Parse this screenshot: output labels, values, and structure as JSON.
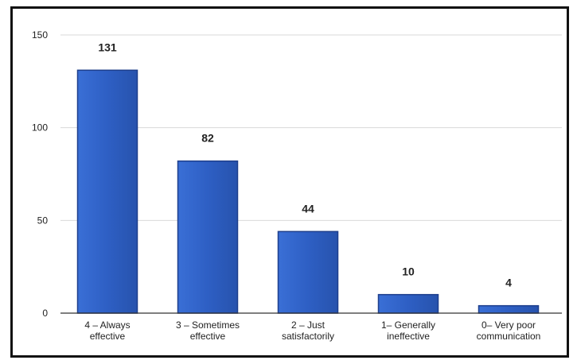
{
  "chart_data": {
    "type": "bar",
    "categories": [
      [
        "4 – Always",
        "effective"
      ],
      [
        "3 – Sometimes",
        "effective"
      ],
      [
        "2 – Just",
        "satisfactorily"
      ],
      [
        "1– Generally",
        "ineffective"
      ],
      [
        "0– Very poor",
        "communication"
      ]
    ],
    "values": [
      131,
      82,
      44,
      10,
      4
    ],
    "data_labels": [
      "131",
      "82",
      "44",
      "10",
      "4"
    ],
    "ylim": [
      0,
      150
    ],
    "yticks": [
      0,
      50,
      100,
      150
    ],
    "grid": true,
    "legend": "none",
    "colors": {
      "bar": "#2e5fc4",
      "bar_edge": "#1e3f8c",
      "grid": "#d9d9d9",
      "frame": "#111111"
    }
  }
}
